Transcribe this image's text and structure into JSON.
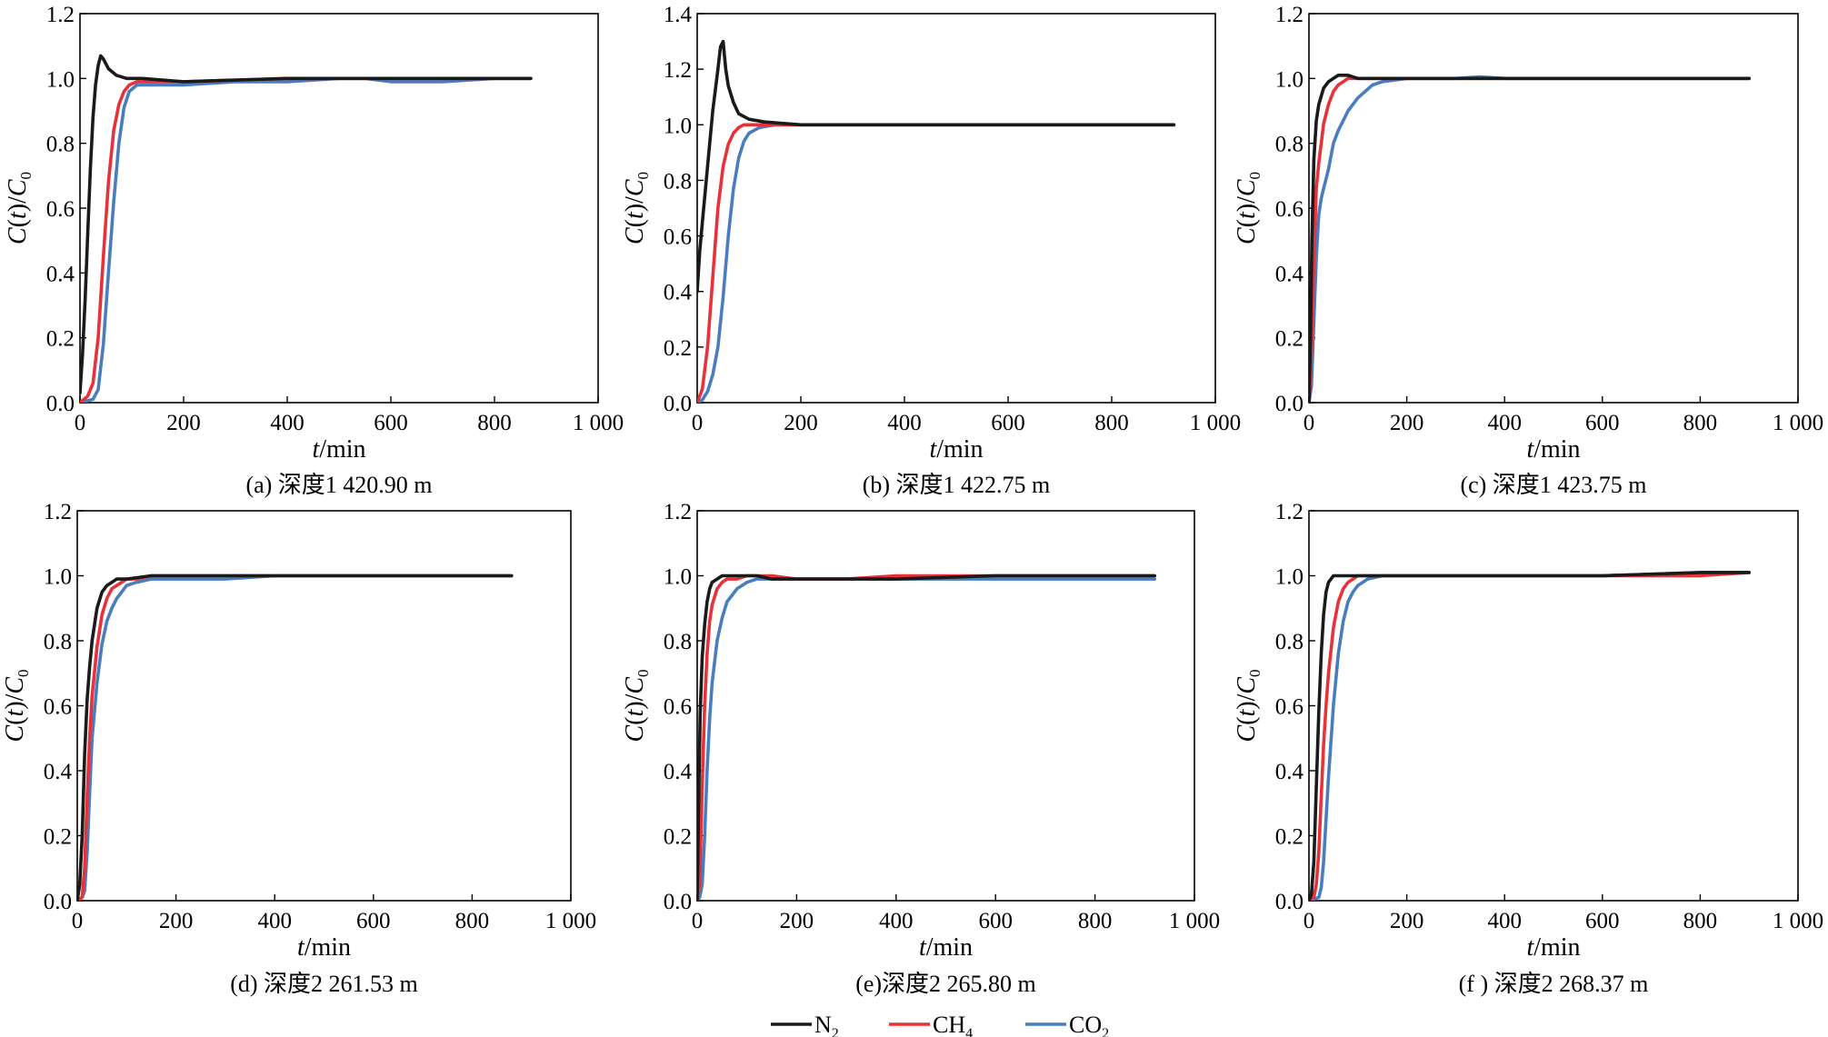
{
  "colors": {
    "N2": "#1a1a1a",
    "CH4": "#e8323a",
    "CO2": "#4a7dbf"
  },
  "legend": [
    {
      "key": "N2",
      "label": "N",
      "sub": "2"
    },
    {
      "key": "CH4",
      "label": "CH",
      "sub": "4"
    },
    {
      "key": "CO2",
      "label": "CO",
      "sub": "2"
    }
  ],
  "chart_data": [
    {
      "type": "line",
      "id": "a",
      "caption": "(a) 深度1 420.90 m",
      "xlabel": "t/min",
      "ylabel": "C(t)/C0",
      "xlim": [
        0,
        1000
      ],
      "ylim": [
        0,
        1.2
      ],
      "xticks": [
        0,
        200,
        400,
        600,
        800,
        1000
      ],
      "xtick_labels": [
        "0",
        "200",
        "400",
        "600",
        "800",
        "1 000"
      ],
      "yticks": [
        0,
        0.2,
        0.4,
        0.6,
        0.8,
        1.0,
        1.2
      ],
      "ytick_labels": [
        "0.0",
        "0.2",
        "0.4",
        "0.6",
        "0.8",
        "1.0",
        "1.2"
      ],
      "series": [
        {
          "name": "N2",
          "x": [
            0,
            5,
            10,
            15,
            20,
            25,
            30,
            35,
            40,
            45,
            55,
            70,
            90,
            120,
            200,
            400,
            600,
            800,
            870
          ],
          "y": [
            0.03,
            0.15,
            0.32,
            0.52,
            0.72,
            0.88,
            0.98,
            1.04,
            1.07,
            1.06,
            1.03,
            1.01,
            1.0,
            1.0,
            0.99,
            1.0,
            1.0,
            1.0,
            1.0
          ]
        },
        {
          "name": "CH4",
          "x": [
            0,
            15,
            25,
            35,
            45,
            55,
            65,
            75,
            85,
            95,
            110,
            130,
            200,
            400,
            600,
            800,
            870
          ],
          "y": [
            0.0,
            0.02,
            0.06,
            0.2,
            0.45,
            0.68,
            0.84,
            0.92,
            0.96,
            0.98,
            0.99,
            0.99,
            0.99,
            1.0,
            1.0,
            1.0,
            1.0
          ]
        },
        {
          "name": "CO2",
          "x": [
            0,
            25,
            35,
            45,
            55,
            65,
            75,
            85,
            95,
            110,
            130,
            150,
            200,
            300,
            400,
            500,
            550,
            600,
            700,
            800,
            870
          ],
          "y": [
            0.0,
            0.01,
            0.04,
            0.18,
            0.4,
            0.62,
            0.8,
            0.91,
            0.96,
            0.98,
            0.98,
            0.98,
            0.98,
            0.99,
            0.99,
            1.0,
            1.0,
            0.99,
            0.99,
            1.0,
            1.0
          ]
        }
      ]
    },
    {
      "type": "line",
      "id": "b",
      "caption": "(b) 深度1 422.75 m",
      "xlabel": "t/min",
      "ylabel": "C(t)/C0",
      "xlim": [
        0,
        1000
      ],
      "ylim": [
        0,
        1.4
      ],
      "xticks": [
        0,
        200,
        400,
        600,
        800,
        1000
      ],
      "xtick_labels": [
        "0",
        "200",
        "400",
        "600",
        "800",
        "1 000"
      ],
      "yticks": [
        0,
        0.2,
        0.4,
        0.6,
        0.8,
        1.0,
        1.2,
        1.4
      ],
      "ytick_labels": [
        "0.0",
        "0.2",
        "0.4",
        "0.6",
        "0.8",
        "1.0",
        "1.2",
        "1.4"
      ],
      "series": [
        {
          "name": "N2",
          "x": [
            0,
            5,
            10,
            20,
            30,
            40,
            45,
            50,
            55,
            60,
            70,
            80,
            100,
            130,
            200,
            400,
            600,
            800,
            920
          ],
          "y": [
            0.4,
            0.55,
            0.65,
            0.85,
            1.05,
            1.2,
            1.28,
            1.3,
            1.2,
            1.14,
            1.08,
            1.04,
            1.02,
            1.01,
            1.0,
            1.0,
            1.0,
            1.0,
            1.0
          ]
        },
        {
          "name": "CH4",
          "x": [
            0,
            10,
            20,
            30,
            40,
            50,
            60,
            70,
            80,
            90,
            100,
            120,
            150,
            200,
            400,
            600,
            800,
            920
          ],
          "y": [
            0.0,
            0.05,
            0.2,
            0.45,
            0.7,
            0.85,
            0.93,
            0.97,
            0.99,
            1.0,
            1.0,
            1.0,
            1.0,
            1.0,
            1.0,
            1.0,
            1.0,
            1.0
          ]
        },
        {
          "name": "CO2",
          "x": [
            0,
            10,
            20,
            30,
            40,
            50,
            60,
            70,
            80,
            90,
            100,
            120,
            150,
            200,
            400,
            600,
            800,
            920
          ],
          "y": [
            0.0,
            0.01,
            0.04,
            0.1,
            0.2,
            0.38,
            0.6,
            0.77,
            0.88,
            0.94,
            0.97,
            0.99,
            1.0,
            1.0,
            1.0,
            1.0,
            1.0,
            1.0
          ]
        }
      ]
    },
    {
      "type": "line",
      "id": "c",
      "caption": "(c) 深度1 423.75 m",
      "xlabel": "t/min",
      "ylabel": "C(t)/C0",
      "xlim": [
        0,
        1000
      ],
      "ylim": [
        0,
        1.2
      ],
      "xticks": [
        0,
        200,
        400,
        600,
        800,
        1000
      ],
      "xtick_labels": [
        "0",
        "200",
        "400",
        "600",
        "800",
        "1 000"
      ],
      "yticks": [
        0,
        0.2,
        0.4,
        0.6,
        0.8,
        1.0,
        1.2
      ],
      "ytick_labels": [
        "0.0",
        "0.2",
        "0.4",
        "0.6",
        "0.8",
        "1.0",
        "1.2"
      ],
      "series": [
        {
          "name": "N2",
          "x": [
            0,
            3,
            6,
            10,
            15,
            20,
            30,
            40,
            50,
            60,
            80,
            100,
            130,
            200,
            400,
            600,
            800,
            900
          ],
          "y": [
            0.0,
            0.2,
            0.5,
            0.75,
            0.87,
            0.92,
            0.97,
            0.99,
            1.0,
            1.01,
            1.01,
            1.0,
            1.0,
            1.0,
            1.0,
            1.0,
            1.0,
            1.0
          ]
        },
        {
          "name": "CH4",
          "x": [
            0,
            5,
            10,
            15,
            20,
            25,
            30,
            40,
            50,
            60,
            70,
            80,
            100,
            130,
            200,
            400,
            600,
            800,
            900
          ],
          "y": [
            0.0,
            0.15,
            0.45,
            0.66,
            0.74,
            0.8,
            0.86,
            0.92,
            0.96,
            0.98,
            0.99,
            1.0,
            1.0,
            1.0,
            1.0,
            1.0,
            1.0,
            1.0,
            1.0
          ]
        },
        {
          "name": "CO2",
          "x": [
            0,
            5,
            10,
            15,
            20,
            25,
            30,
            40,
            50,
            60,
            70,
            80,
            100,
            130,
            150,
            200,
            300,
            350,
            400,
            600,
            800,
            900
          ],
          "y": [
            0.0,
            0.05,
            0.25,
            0.45,
            0.58,
            0.63,
            0.66,
            0.72,
            0.8,
            0.84,
            0.87,
            0.9,
            0.94,
            0.98,
            0.99,
            1.0,
            1.0,
            1.005,
            1.0,
            1.0,
            1.0,
            1.0
          ]
        }
      ]
    },
    {
      "type": "line",
      "id": "d",
      "caption": "(d) 深度2 261.53 m",
      "xlabel": "t/min",
      "ylabel": "C(t)/C0",
      "xlim": [
        0,
        1000
      ],
      "ylim": [
        0,
        1.2
      ],
      "xticks": [
        0,
        200,
        400,
        600,
        800,
        1000
      ],
      "xtick_labels": [
        "0",
        "200",
        "400",
        "600",
        "800",
        "1 000"
      ],
      "yticks": [
        0,
        0.2,
        0.4,
        0.6,
        0.8,
        1.0,
        1.2
      ],
      "ytick_labels": [
        "0.0",
        "0.2",
        "0.4",
        "0.6",
        "0.8",
        "1.0",
        "1.2"
      ],
      "series": [
        {
          "name": "N2",
          "x": [
            0,
            5,
            10,
            15,
            20,
            25,
            30,
            40,
            50,
            60,
            70,
            80,
            100,
            150,
            200,
            400,
            600,
            800,
            880
          ],
          "y": [
            0.0,
            0.05,
            0.2,
            0.45,
            0.62,
            0.72,
            0.8,
            0.9,
            0.95,
            0.97,
            0.98,
            0.99,
            0.99,
            1.0,
            1.0,
            1.0,
            1.0,
            1.0,
            1.0
          ]
        },
        {
          "name": "CH4",
          "x": [
            0,
            10,
            15,
            20,
            25,
            30,
            40,
            50,
            60,
            70,
            80,
            90,
            100,
            120,
            150,
            200,
            400,
            600,
            800,
            880
          ],
          "y": [
            0.0,
            0.01,
            0.1,
            0.32,
            0.5,
            0.63,
            0.78,
            0.88,
            0.93,
            0.96,
            0.97,
            0.98,
            0.99,
            0.99,
            1.0,
            1.0,
            1.0,
            1.0,
            1.0,
            1.0
          ]
        },
        {
          "name": "CO2",
          "x": [
            0,
            10,
            15,
            20,
            25,
            30,
            40,
            50,
            60,
            70,
            80,
            90,
            100,
            120,
            150,
            200,
            300,
            400,
            600,
            800,
            880
          ],
          "y": [
            0.0,
            0.01,
            0.03,
            0.15,
            0.33,
            0.5,
            0.67,
            0.79,
            0.86,
            0.9,
            0.93,
            0.95,
            0.97,
            0.98,
            0.99,
            0.99,
            0.99,
            1.0,
            1.0,
            1.0,
            1.0
          ]
        }
      ]
    },
    {
      "type": "line",
      "id": "e",
      "caption": "(e)深度2 265.80 m",
      "xlabel": "t/min",
      "ylabel": "C(t)/C0",
      "xlim": [
        0,
        1000
      ],
      "ylim": [
        0,
        1.2
      ],
      "xticks": [
        0,
        200,
        400,
        600,
        800,
        1000
      ],
      "xtick_labels": [
        "0",
        "200",
        "400",
        "600",
        "800",
        "1 000"
      ],
      "yticks": [
        0,
        0.2,
        0.4,
        0.6,
        0.8,
        1.0,
        1.2
      ],
      "ytick_labels": [
        "0.0",
        "0.2",
        "0.4",
        "0.6",
        "0.8",
        "1.0",
        "1.2"
      ],
      "series": [
        {
          "name": "N2",
          "x": [
            0,
            3,
            6,
            10,
            15,
            20,
            25,
            30,
            40,
            50,
            60,
            80,
            100,
            120,
            150,
            200,
            400,
            600,
            800,
            920
          ],
          "y": [
            0.0,
            0.3,
            0.58,
            0.75,
            0.85,
            0.92,
            0.96,
            0.98,
            0.99,
            1.0,
            1.0,
            1.0,
            1.0,
            1.0,
            0.99,
            0.99,
            0.99,
            1.0,
            1.0,
            1.0
          ]
        },
        {
          "name": "CH4",
          "x": [
            0,
            5,
            10,
            15,
            20,
            25,
            30,
            40,
            50,
            60,
            80,
            100,
            150,
            200,
            300,
            400,
            600,
            800,
            920
          ],
          "y": [
            0.0,
            0.05,
            0.35,
            0.6,
            0.76,
            0.86,
            0.91,
            0.96,
            0.98,
            0.99,
            0.99,
            1.0,
            1.0,
            0.99,
            0.99,
            1.0,
            1.0,
            1.0,
            1.0
          ]
        },
        {
          "name": "CO2",
          "x": [
            0,
            5,
            10,
            15,
            20,
            25,
            30,
            40,
            50,
            60,
            70,
            80,
            100,
            120,
            150,
            200,
            250,
            300,
            400,
            600,
            800,
            920
          ],
          "y": [
            0.0,
            0.01,
            0.05,
            0.2,
            0.4,
            0.56,
            0.67,
            0.8,
            0.87,
            0.92,
            0.94,
            0.96,
            0.98,
            0.99,
            0.99,
            0.99,
            0.99,
            0.99,
            0.99,
            0.99,
            0.99,
            0.99
          ]
        }
      ]
    },
    {
      "type": "line",
      "id": "f",
      "caption": "(f ) 深度2 268.37 m",
      "xlabel": "t/min",
      "ylabel": "C(t)/C0",
      "xlim": [
        0,
        1000
      ],
      "ylim": [
        0,
        1.2
      ],
      "xticks": [
        0,
        200,
        400,
        600,
        800,
        1000
      ],
      "xtick_labels": [
        "0",
        "200",
        "400",
        "600",
        "800",
        "1 000"
      ],
      "yticks": [
        0,
        0.2,
        0.4,
        0.6,
        0.8,
        1.0,
        1.2
      ],
      "ytick_labels": [
        "0.0",
        "0.2",
        "0.4",
        "0.6",
        "0.8",
        "1.0",
        "1.2"
      ],
      "series": [
        {
          "name": "N2",
          "x": [
            0,
            5,
            10,
            15,
            20,
            25,
            30,
            35,
            40,
            50,
            60,
            80,
            100,
            200,
            400,
            600,
            800,
            900
          ],
          "y": [
            0.0,
            0.02,
            0.12,
            0.35,
            0.58,
            0.76,
            0.88,
            0.95,
            0.98,
            1.0,
            1.0,
            1.0,
            1.0,
            1.0,
            1.0,
            1.0,
            1.01,
            1.01
          ]
        },
        {
          "name": "CH4",
          "x": [
            0,
            10,
            15,
            20,
            25,
            30,
            35,
            40,
            50,
            60,
            70,
            80,
            100,
            150,
            200,
            400,
            600,
            800,
            900
          ],
          "y": [
            0.0,
            0.01,
            0.05,
            0.15,
            0.32,
            0.48,
            0.6,
            0.7,
            0.84,
            0.92,
            0.96,
            0.98,
            1.0,
            1.0,
            1.0,
            1.0,
            1.0,
            1.0,
            1.01
          ]
        },
        {
          "name": "CO2",
          "x": [
            0,
            20,
            25,
            30,
            35,
            40,
            50,
            60,
            70,
            80,
            90,
            100,
            120,
            150,
            200,
            400,
            600,
            800,
            900
          ],
          "y": [
            0.0,
            0.01,
            0.04,
            0.12,
            0.25,
            0.38,
            0.6,
            0.76,
            0.86,
            0.92,
            0.95,
            0.97,
            0.99,
            1.0,
            1.0,
            1.0,
            1.0,
            1.01,
            1.01
          ]
        }
      ]
    }
  ]
}
